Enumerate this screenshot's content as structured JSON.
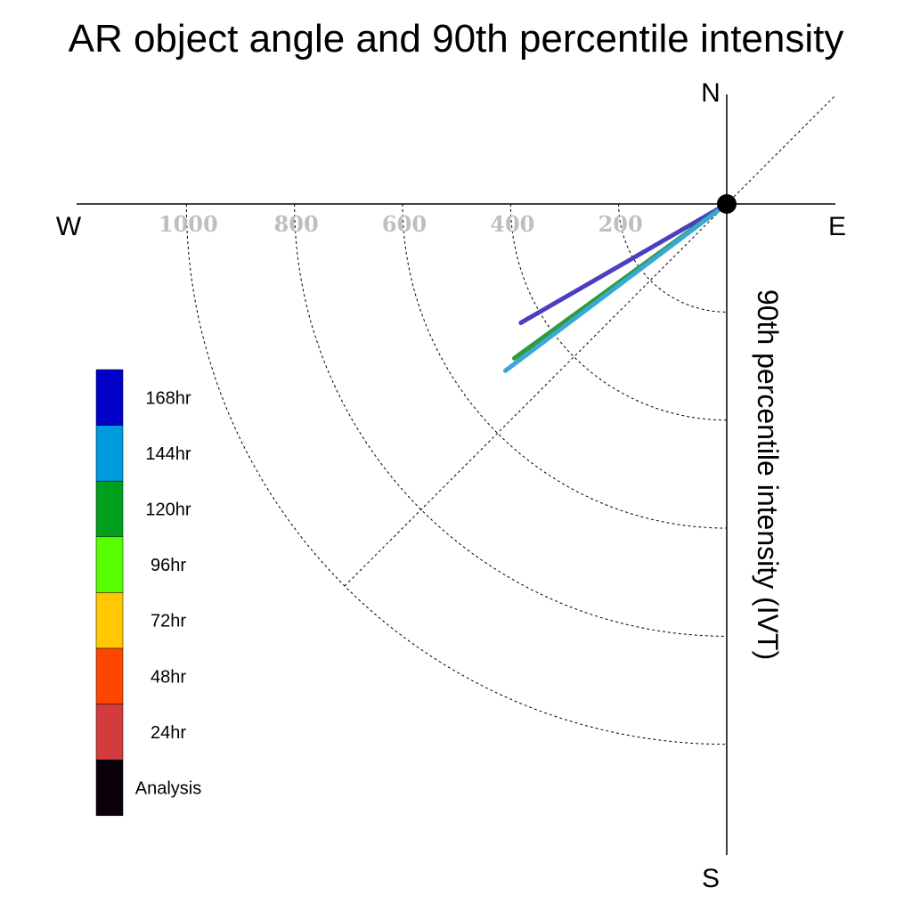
{
  "chart_data": {
    "type": "polar-line",
    "title": "AR object angle and 90th percentile intensity",
    "axis_label": "90th percentile intensity (IVT)",
    "compass": {
      "north": "N",
      "south": "S",
      "east": "E",
      "west": "W"
    },
    "radial_ticks": [
      200,
      400,
      600,
      800,
      1000
    ],
    "radial_range": [
      0,
      1000
    ],
    "legend": [
      {
        "label": "168hr",
        "color": "#0000c8"
      },
      {
        "label": "144hr",
        "color": "#009bdc"
      },
      {
        "label": "120hr",
        "color": "#00a01e"
      },
      {
        "label": "96hr",
        "color": "#55ff00"
      },
      {
        "label": "72hr",
        "color": "#ffc800"
      },
      {
        "label": "48hr",
        "color": "#ff4600"
      },
      {
        "label": "24hr",
        "color": "#d23c3c"
      },
      {
        "label": "Analysis",
        "color": "#0a000a"
      }
    ],
    "series": [
      {
        "name": "168hr",
        "color": "#4a3fc0",
        "angle_deg": 30,
        "value": 440
      },
      {
        "name": "120hr",
        "color": "#2e9a3a",
        "angle_deg": 36,
        "value": 486
      },
      {
        "name": "144hr",
        "color": "#3aa8d6",
        "angle_deg": 37,
        "value": 513
      }
    ],
    "grid": true
  }
}
